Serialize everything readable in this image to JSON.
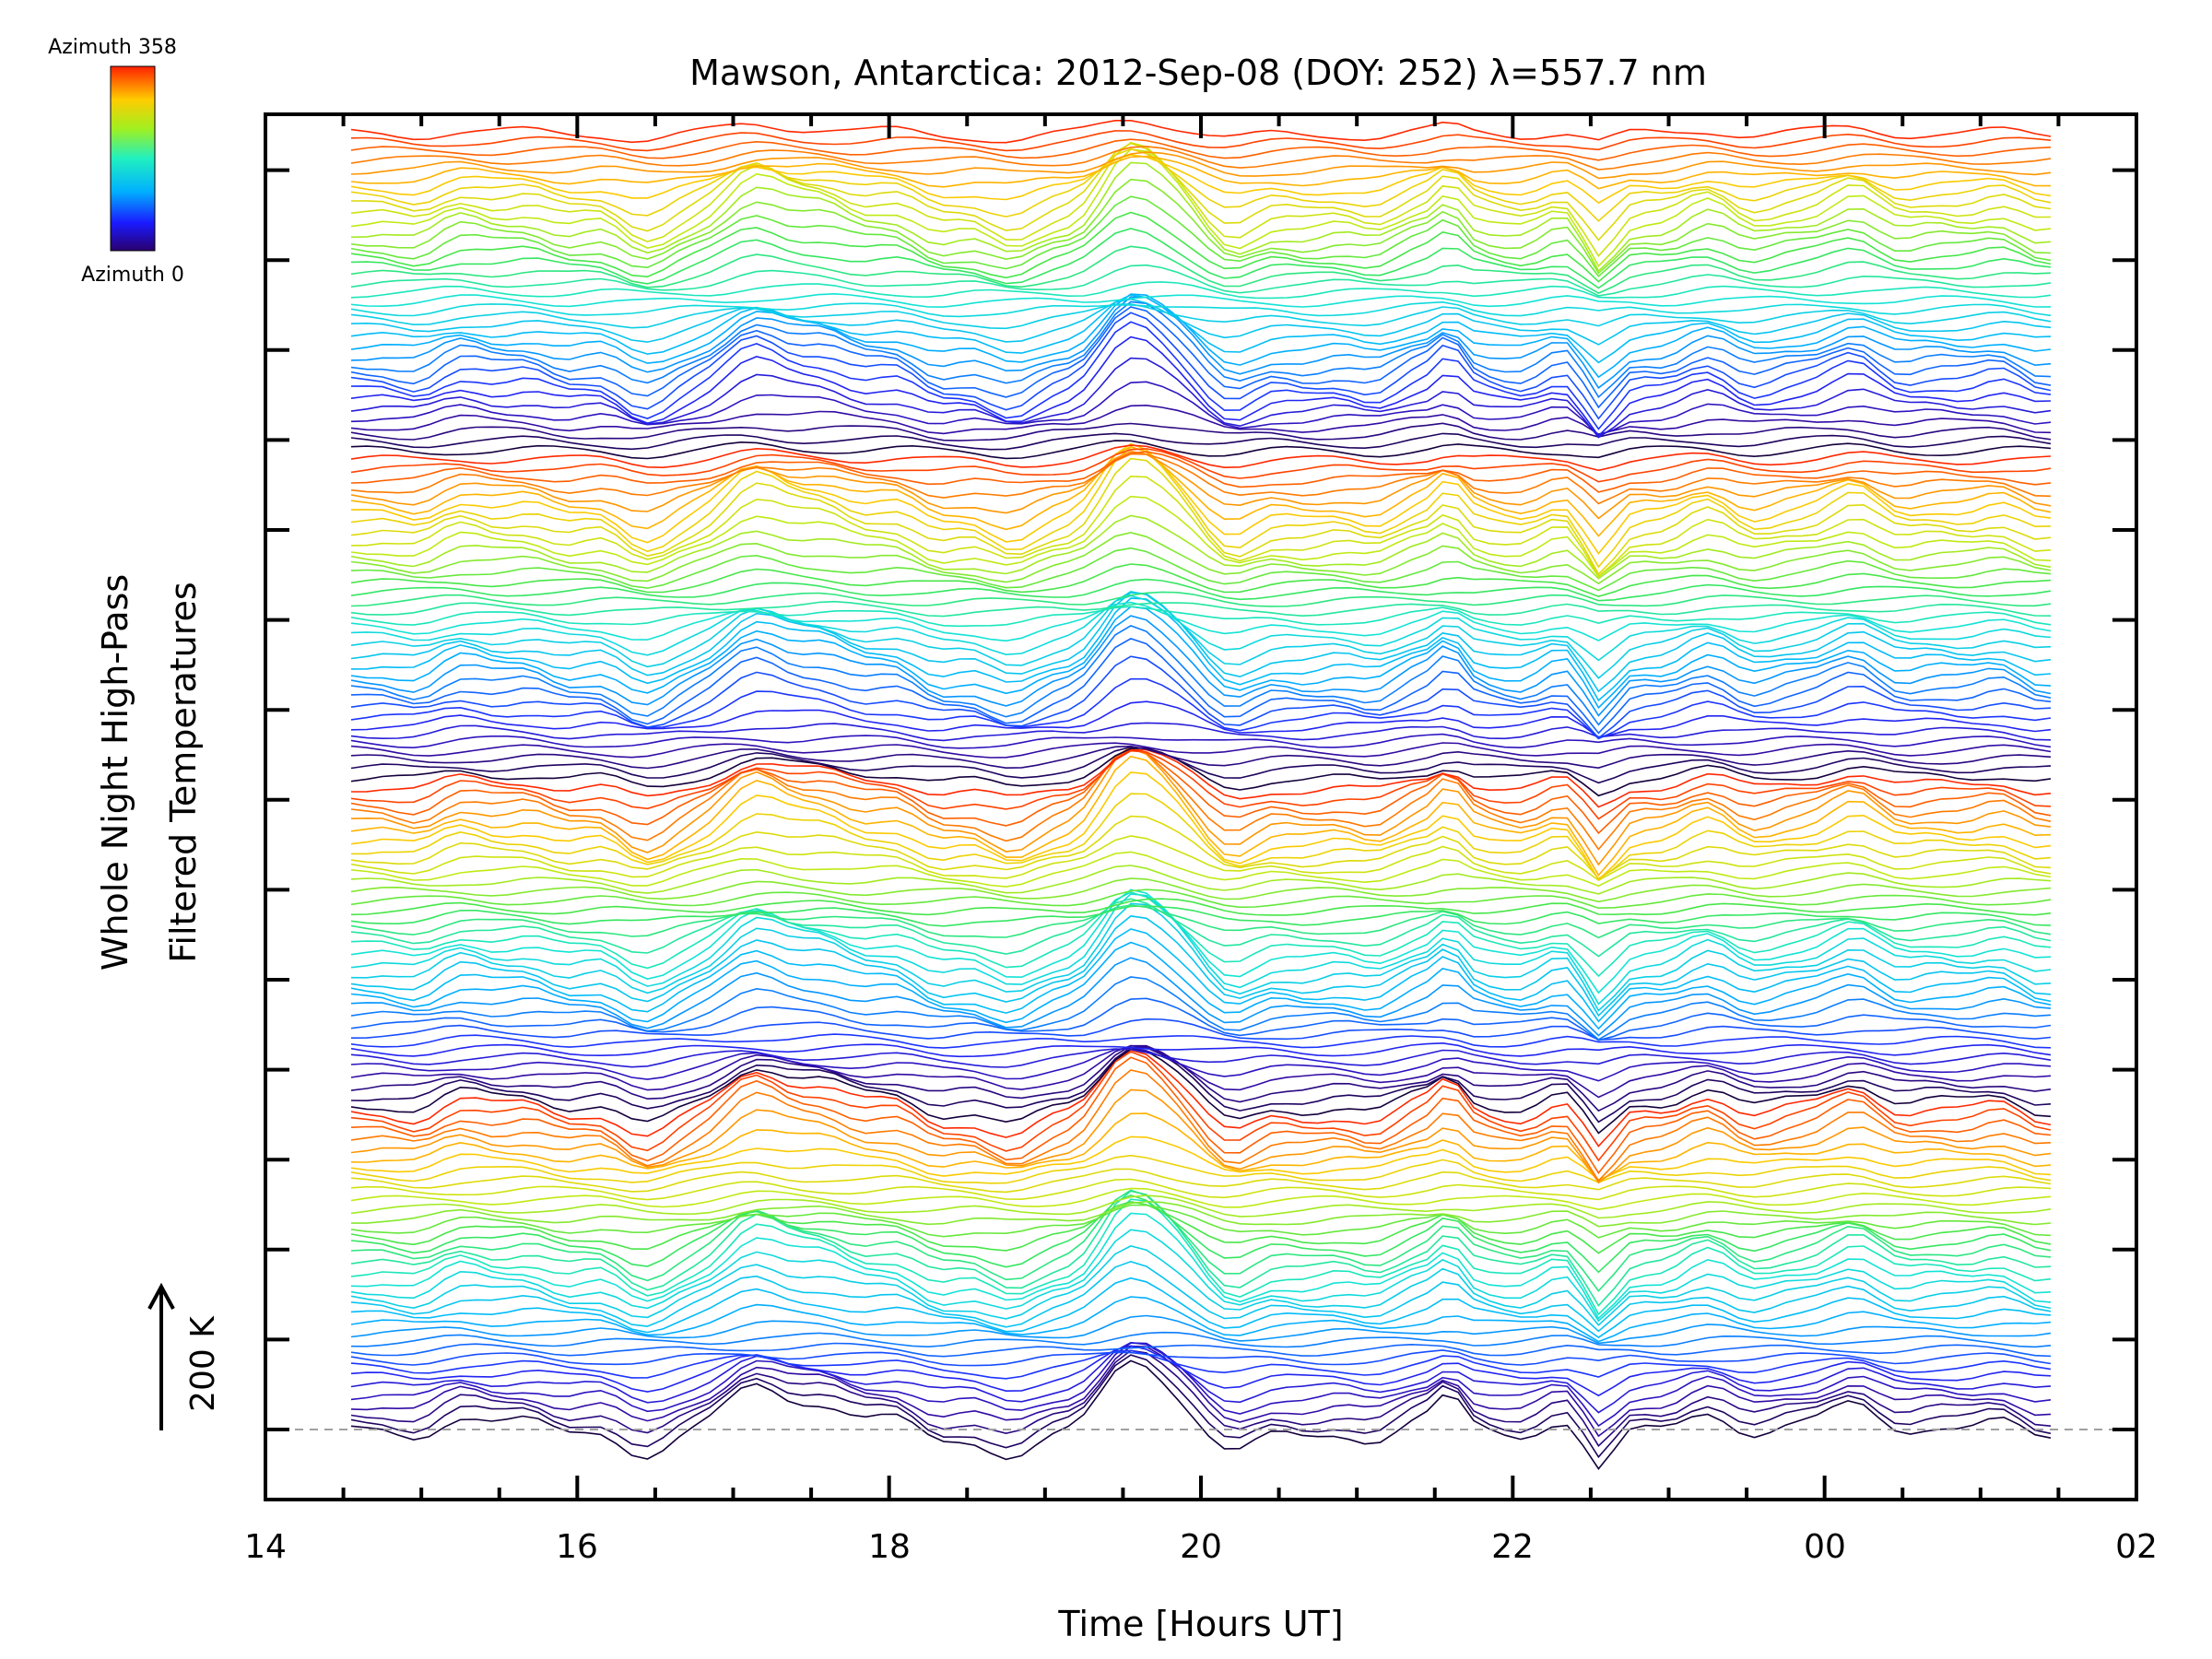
{
  "chart_data": {
    "type": "line",
    "title": "Mawson, Antarctica: 2012-Sep-08 (DOY: 252) λ=557.7 nm",
    "xlabel": "Time [Hours UT]",
    "ylabel_line1": "Whole Night High-Pass",
    "ylabel_line2": "Filtered Temperatures",
    "scale_bar_label": "200 K",
    "x_ticks": [
      "14",
      "16",
      "18",
      "20",
      "22",
      "00",
      "02"
    ],
    "xlim_hours": [
      14,
      26
    ],
    "data_range_hours": [
      14.55,
      25.5
    ],
    "colorbar": {
      "top_label": "Azimuth 358",
      "bottom_label": "Azimuth 0",
      "colormap": "rainbow"
    },
    "baseline_style": "dashed",
    "n_traces": 148,
    "colors": {
      "background": "#ffffff",
      "axes": "#000000",
      "baseline": "#a0a0a0"
    }
  }
}
